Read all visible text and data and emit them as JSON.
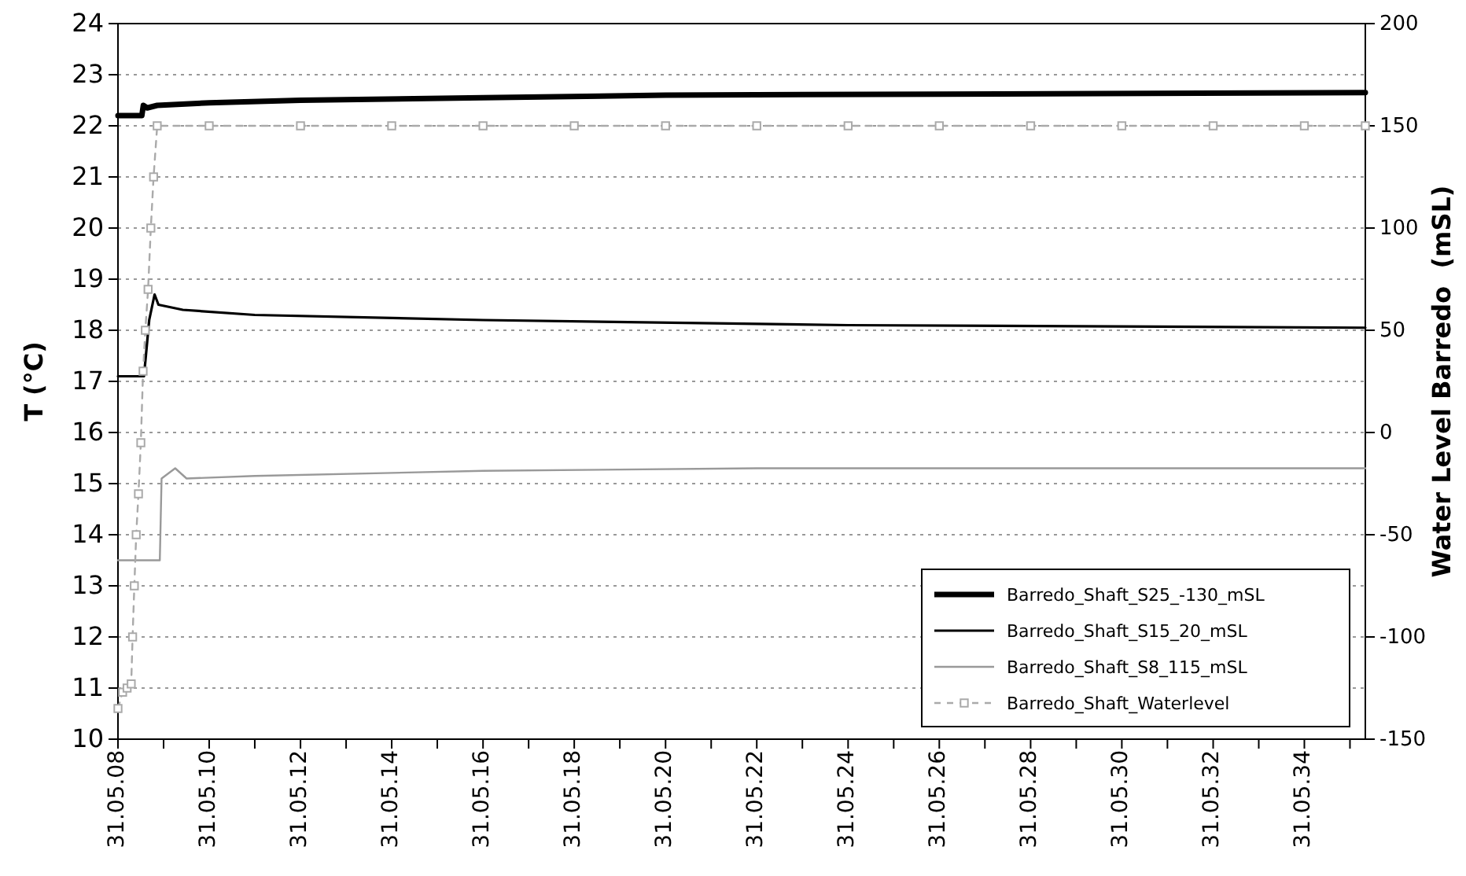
{
  "chart_data": {
    "type": "line",
    "ylabel": "T (°C)",
    "y2label": "Water Level Barredo  (mSL)",
    "xlim": [
      "2008-05-31",
      "2035-10-01"
    ],
    "xticks": [
      {
        "value": "2008-05-31",
        "label": "31.05.08"
      },
      {
        "value": "2009-05-31",
        "label": null
      },
      {
        "value": "2010-05-31",
        "label": "31.05.10"
      },
      {
        "value": "2011-05-31",
        "label": null
      },
      {
        "value": "2012-05-31",
        "label": "31.05.12"
      },
      {
        "value": "2013-05-31",
        "label": null
      },
      {
        "value": "2014-05-31",
        "label": "31.05.14"
      },
      {
        "value": "2015-05-31",
        "label": null
      },
      {
        "value": "2016-05-31",
        "label": "31.05.16"
      },
      {
        "value": "2017-05-31",
        "label": null
      },
      {
        "value": "2018-05-31",
        "label": "31.05.18"
      },
      {
        "value": "2019-05-31",
        "label": null
      },
      {
        "value": "2020-05-31",
        "label": "31.05.20"
      },
      {
        "value": "2021-05-31",
        "label": null
      },
      {
        "value": "2022-05-31",
        "label": "31.05.22"
      },
      {
        "value": "2023-05-31",
        "label": null
      },
      {
        "value": "2024-05-31",
        "label": "31.05.24"
      },
      {
        "value": "2025-05-31",
        "label": null
      },
      {
        "value": "2026-05-31",
        "label": "31.05.26"
      },
      {
        "value": "2027-05-31",
        "label": null
      },
      {
        "value": "2028-05-31",
        "label": "31.05.28"
      },
      {
        "value": "2029-05-31",
        "label": null
      },
      {
        "value": "2030-05-31",
        "label": "31.05.30"
      },
      {
        "value": "2031-05-31",
        "label": null
      },
      {
        "value": "2032-05-31",
        "label": "31.05.32"
      },
      {
        "value": "2033-05-31",
        "label": null
      },
      {
        "value": "2034-05-31",
        "label": "31.05.34"
      },
      {
        "value": "2035-05-31",
        "label": null
      }
    ],
    "ylim": [
      10,
      24
    ],
    "yticks": [
      10,
      11,
      12,
      13,
      14,
      15,
      16,
      17,
      18,
      19,
      20,
      21,
      22,
      23,
      24
    ],
    "y2lim": [
      -150,
      200
    ],
    "y2ticks": [
      -150,
      -100,
      -50,
      0,
      50,
      100,
      150,
      200
    ],
    "grid": "y",
    "legend": "bottom right",
    "series": [
      {
        "name": "Barredo_Shaft_S25_-130_mSL",
        "color": "#000000",
        "x": [
          "2008-05-31",
          "2008-12-08",
          "2008-12-20",
          "2009-01-20",
          "2009-04-10",
          "2010-05-31",
          "2012-05-31",
          "2016-05-31",
          "2020-05-31",
          "2026-05-31",
          "2035-10-01"
        ],
        "values": [
          22.2,
          22.2,
          22.4,
          22.35,
          22.4,
          22.45,
          22.5,
          22.55,
          22.6,
          22.62,
          22.65
        ]
      },
      {
        "name": "Barredo_Shaft_S15_20_mSL",
        "color": "#000000",
        "x": [
          "2008-05-31",
          "2008-12-25",
          "2009-02-05",
          "2009-03-20",
          "2009-04-20",
          "2009-11-01",
          "2011-05-31",
          "2016-05-31",
          "2024-05-31",
          "2035-10-01"
        ],
        "values": [
          17.1,
          17.1,
          18.2,
          18.7,
          18.5,
          18.4,
          18.3,
          18.2,
          18.1,
          18.05
        ]
      },
      {
        "name": "Barredo_Shaft_S8_115_mSL",
        "color": "#999999",
        "x": [
          "2008-05-31",
          "2009-05-01",
          "2009-05-15",
          "2009-09-01",
          "2009-12-01",
          "2011-05-31",
          "2016-05-31",
          "2022-05-31",
          "2035-10-01"
        ],
        "values": [
          13.5,
          13.5,
          15.1,
          15.3,
          15.1,
          15.15,
          15.25,
          15.3,
          15.3
        ]
      },
      {
        "name": "Barredo_Shaft_Waterlevel",
        "color": "#aaaaaa",
        "axis": "y2",
        "line_style": "dashed",
        "marker": "square",
        "x": [
          "2008-05-31",
          "2008-07-07",
          "2008-08-12",
          "2008-09-14",
          "2008-09-25",
          "2008-10-09",
          "2008-10-24",
          "2008-11-11",
          "2008-11-30",
          "2008-12-18",
          "2009-01-05",
          "2009-01-27",
          "2009-02-18",
          "2009-03-12",
          "2009-04-10",
          "2010-05-31",
          "2012-05-31",
          "2014-05-31",
          "2016-05-31",
          "2018-05-31",
          "2020-05-31",
          "2022-05-31",
          "2024-05-31",
          "2026-05-31",
          "2028-05-31",
          "2030-05-31",
          "2032-05-31",
          "2034-05-31",
          "2035-10-01"
        ],
        "values": [
          -135,
          -127,
          -125,
          -123,
          -100,
          -75,
          -50,
          -30,
          -5,
          30,
          50,
          70,
          100,
          125,
          150,
          150,
          150,
          150,
          150,
          150,
          150,
          150,
          150,
          150,
          150,
          150,
          150,
          150,
          150
        ]
      }
    ]
  }
}
